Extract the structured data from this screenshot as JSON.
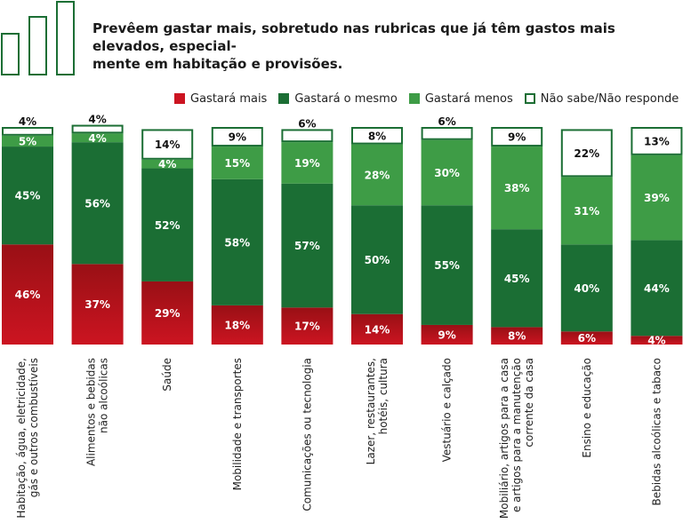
{
  "title": "Prevêem gastar mais, sobretudo nas rubricas que já têm gastos mais elevados, especial-mente em habitação e provisões.",
  "title_lines": [
    "Prevêem gastar mais, sobretudo nas rubricas que já têm gastos mais elevados, especial-",
    "mente em habitação e provisões."
  ],
  "colors": {
    "more": "#cc1421",
    "same": "#1b6e34",
    "less": "#3e9c46",
    "unknown_border": "#1b6e34",
    "label_text": "#ffffff",
    "unknown_text": "#111111"
  },
  "chart_data": {
    "type": "bar",
    "stacked": true,
    "orientation": "vertical",
    "ylim": [
      0,
      100
    ],
    "grid": false,
    "legend_position": "top-right",
    "categories": [
      "Habitação, água, eletricidade, gás e outros combustíveis",
      "Alimentos e bebidas não alcoólicas",
      "Saúde",
      "Mobilidade e transportes",
      "Comunicações ou tecnologia",
      "Lazer, restaurantes, hotéis, cultura",
      "Vestuário e calçado",
      "Mobiliário, artigos para a casa e artigos para a manutenção corrente da casa",
      "Ensino e educação",
      "Bebidas alcoólicas e tabaco"
    ],
    "category_lines": [
      [
        "Habitação, água, eletricidade,",
        "gás e outros combustíveis"
      ],
      [
        "Alimentos e bebidas",
        "não alcoólicas"
      ],
      [
        "Saúde"
      ],
      [
        "Mobilidade e transportes"
      ],
      [
        "Comunicações ou tecnologia"
      ],
      [
        "Lazer, restaurantes,",
        "hotéis, cultura"
      ],
      [
        "Vestuário e calçado"
      ],
      [
        "Mobiliário, artigos para a casa",
        "e artigos para a manutenção",
        "corrente da casa"
      ],
      [
        "Ensino e educação"
      ],
      [
        "Bebidas alcoólicas e tabaco"
      ]
    ],
    "series": [
      {
        "name": "Gastará mais",
        "key": "more",
        "values": [
          46,
          37,
          29,
          18,
          17,
          14,
          9,
          8,
          6,
          4
        ]
      },
      {
        "name": "Gastará o mesmo",
        "key": "same",
        "values": [
          45,
          56,
          52,
          58,
          57,
          50,
          55,
          45,
          40,
          44
        ]
      },
      {
        "name": "Gastará menos",
        "key": "less",
        "values": [
          5,
          4,
          4,
          15,
          19,
          28,
          30,
          38,
          31,
          39
        ]
      },
      {
        "name": "Não sabe/Não responde",
        "key": "unknown",
        "values": [
          4,
          4,
          14,
          9,
          6,
          8,
          6,
          9,
          22,
          13
        ]
      }
    ],
    "labels": [
      [
        "46%",
        "45%",
        "5%",
        "4%"
      ],
      [
        "37%",
        "56%",
        "4%",
        "4%"
      ],
      [
        "29%",
        "52%",
        "4%",
        "14%"
      ],
      [
        "18%",
        "58%",
        "15%",
        "9%"
      ],
      [
        "17%",
        "57%",
        "19%",
        "6%"
      ],
      [
        "14%",
        "50%",
        "28%",
        "8%"
      ],
      [
        "9%",
        "55%",
        "30%",
        "6%"
      ],
      [
        "8%",
        "45%",
        "38%",
        "9%"
      ],
      [
        "6%",
        "40%",
        "31%",
        "22%"
      ],
      [
        "4%",
        "44%",
        "39%",
        "13%"
      ]
    ]
  }
}
